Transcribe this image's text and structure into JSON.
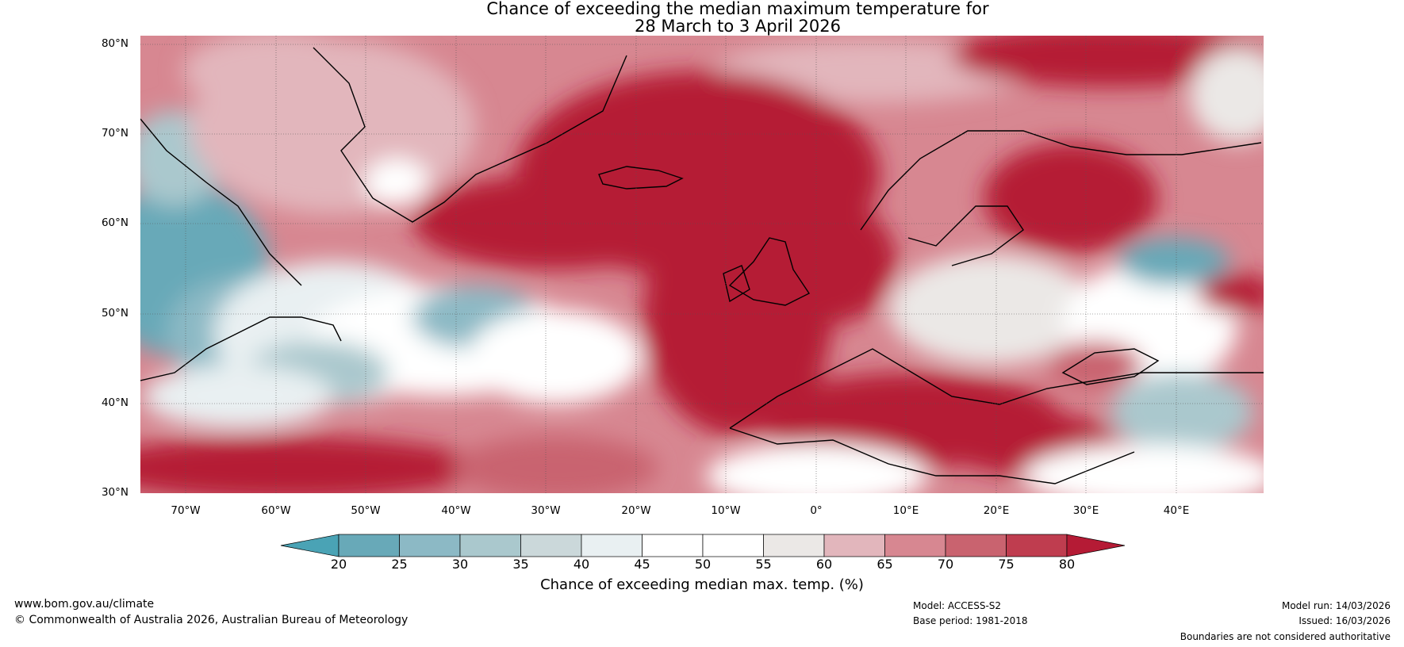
{
  "title": {
    "line1": "Chance of exceeding the median maximum temperature for",
    "line2": "28 March to 3 April 2026"
  },
  "axes": {
    "lat_labels": [
      "80°N",
      "70°N",
      "60°N",
      "50°N",
      "40°N",
      "30°N"
    ],
    "lon_labels": [
      "70°W",
      "60°W",
      "50°W",
      "40°W",
      "30°W",
      "20°W",
      "10°W",
      "0°",
      "10°E",
      "20°E",
      "30°E",
      "40°E"
    ]
  },
  "colorbar": {
    "ticks": [
      "20",
      "25",
      "30",
      "35",
      "40",
      "45",
      "50",
      "55",
      "60",
      "65",
      "70",
      "75",
      "80"
    ],
    "colors": [
      "#4aa3b5",
      "#68a9b8",
      "#8cb9c5",
      "#aac8cd",
      "#cbd8da",
      "#e9f0f2",
      "#ffffff",
      "#ffffff",
      "#ebe8e6",
      "#e2b6bc",
      "#d78791",
      "#c9636f",
      "#bf3d4f",
      "#b51b35"
    ],
    "label": "Chance of exceeding median max. temp. (%)"
  },
  "footer": {
    "website": "www.bom.gov.au/climate",
    "copyright": "© Commonwealth of Australia 2026, Australian Bureau of Meteorology",
    "model": "Model: ACCESS-S2",
    "base_period": "Base period: 1981-2018",
    "model_run": "Model run: 14/03/2026",
    "issued": "Issued: 16/03/2026",
    "disclaimer": "Boundaries are not considered authoritative"
  }
}
